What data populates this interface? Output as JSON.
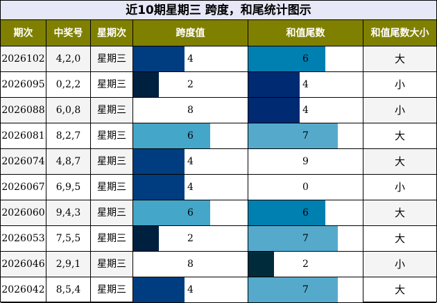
{
  "title": "近10期星期三 跨度，和尾统计图示",
  "headers": {
    "period": "期次",
    "draw": "中奖号",
    "weekday": "星期次",
    "span": "跨度值",
    "sum_tail": "和值尾数",
    "sum_tail_size": "和值尾数大小"
  },
  "scale_max": 9,
  "colors": {
    "header_bg": "#808000",
    "title_bg": "#e6e7f7",
    "value_colors": {
      "0": "#ffffff",
      "2": "#002b3a",
      "4": "#002a72",
      "6": "#0080b0",
      "7": "#55aacc",
      "8": "#ffffff",
      "9": "#ffffff"
    },
    "span_colors": {
      "2": "#00203f",
      "4": "#003d80",
      "6": "#44a6c8",
      "8": "#ffffff"
    }
  },
  "rows": [
    {
      "period": "2026102",
      "draw": "4,2,0",
      "weekday": "星期三",
      "span": 4,
      "sum_tail": 6,
      "size": "大"
    },
    {
      "period": "2026095",
      "draw": "0,2,2",
      "weekday": "星期三",
      "span": 2,
      "sum_tail": 4,
      "size": "小"
    },
    {
      "period": "2026088",
      "draw": "6,0,8",
      "weekday": "星期三",
      "span": 8,
      "sum_tail": 4,
      "size": "小"
    },
    {
      "period": "2026081",
      "draw": "8,2,7",
      "weekday": "星期三",
      "span": 6,
      "sum_tail": 7,
      "size": "大"
    },
    {
      "period": "2026074",
      "draw": "4,8,7",
      "weekday": "星期三",
      "span": 4,
      "sum_tail": 9,
      "size": "大"
    },
    {
      "period": "2026067",
      "draw": "6,9,5",
      "weekday": "星期三",
      "span": 4,
      "sum_tail": 0,
      "size": "小"
    },
    {
      "period": "2026060",
      "draw": "9,4,3",
      "weekday": "星期三",
      "span": 6,
      "sum_tail": 6,
      "size": "大"
    },
    {
      "period": "2026053",
      "draw": "7,5,5",
      "weekday": "星期三",
      "span": 2,
      "sum_tail": 7,
      "size": "大"
    },
    {
      "period": "2026046",
      "draw": "2,9,1",
      "weekday": "星期三",
      "span": 8,
      "sum_tail": 2,
      "size": "小"
    },
    {
      "period": "2026042",
      "draw": "8,5,4",
      "weekday": "星期三",
      "span": 4,
      "sum_tail": 7,
      "size": "大"
    }
  ]
}
